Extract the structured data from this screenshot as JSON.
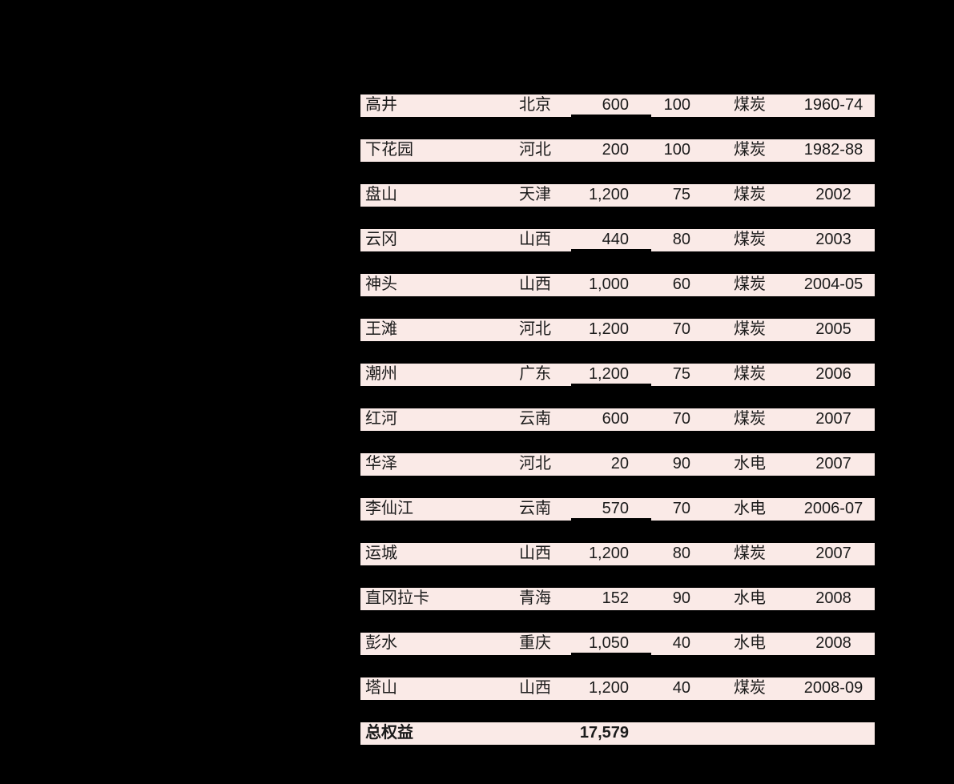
{
  "page": {
    "background": "#000000"
  },
  "table": {
    "row_bg": "#FAEAE7",
    "text_color": "#1B1B1B",
    "underline_color": "#000000",
    "columns": [
      "name",
      "province",
      "capacity",
      "stake",
      "fuel",
      "year"
    ],
    "rows": [
      {
        "name": "高井",
        "province": "北京",
        "capacity": "600",
        "stake": "100",
        "fuel": "煤炭",
        "year": "1960-74",
        "underline": true
      },
      {
        "name": "下花园",
        "province": "河北",
        "capacity": "200",
        "stake": "100",
        "fuel": "煤炭",
        "year": "1982-88",
        "underline": false
      },
      {
        "name": "盘山",
        "province": "天津",
        "capacity": "1,200",
        "stake": "75",
        "fuel": "煤炭",
        "year": "2002",
        "underline": false
      },
      {
        "name": "云冈",
        "province": "山西",
        "capacity": "440",
        "stake": "80",
        "fuel": "煤炭",
        "year": "2003",
        "underline": true
      },
      {
        "name": "神头",
        "province": "山西",
        "capacity": "1,000",
        "stake": "60",
        "fuel": "煤炭",
        "year": "2004-05",
        "underline": false
      },
      {
        "name": "王滩",
        "province": "河北",
        "capacity": "1,200",
        "stake": "70",
        "fuel": "煤炭",
        "year": "2005",
        "underline": false
      },
      {
        "name": "潮州",
        "province": "广东",
        "capacity": "1,200",
        "stake": "75",
        "fuel": "煤炭",
        "year": "2006",
        "underline": true
      },
      {
        "name": "红河",
        "province": "云南",
        "capacity": "600",
        "stake": "70",
        "fuel": "煤炭",
        "year": "2007",
        "underline": false
      },
      {
        "name": "华泽",
        "province": "河北",
        "capacity": "20",
        "stake": "90",
        "fuel": "水电",
        "year": "2007",
        "underline": false
      },
      {
        "name": "李仙江",
        "province": "云南",
        "capacity": "570",
        "stake": "70",
        "fuel": "水电",
        "year": "2006-07",
        "underline": true
      },
      {
        "name": "运城",
        "province": "山西",
        "capacity": "1,200",
        "stake": "80",
        "fuel": "煤炭",
        "year": "2007",
        "underline": false
      },
      {
        "name": "直冈拉卡",
        "province": "青海",
        "capacity": "152",
        "stake": "90",
        "fuel": "水电",
        "year": "2008",
        "underline": false
      },
      {
        "name": "彭水",
        "province": "重庆",
        "capacity": "1,050",
        "stake": "40",
        "fuel": "水电",
        "year": "2008",
        "underline": true
      },
      {
        "name": "塔山",
        "province": "山西",
        "capacity": "1,200",
        "stake": "40",
        "fuel": "煤炭",
        "year": "2008-09",
        "underline": false
      }
    ],
    "total_row": {
      "label": "总权益",
      "value": "17,579"
    }
  }
}
